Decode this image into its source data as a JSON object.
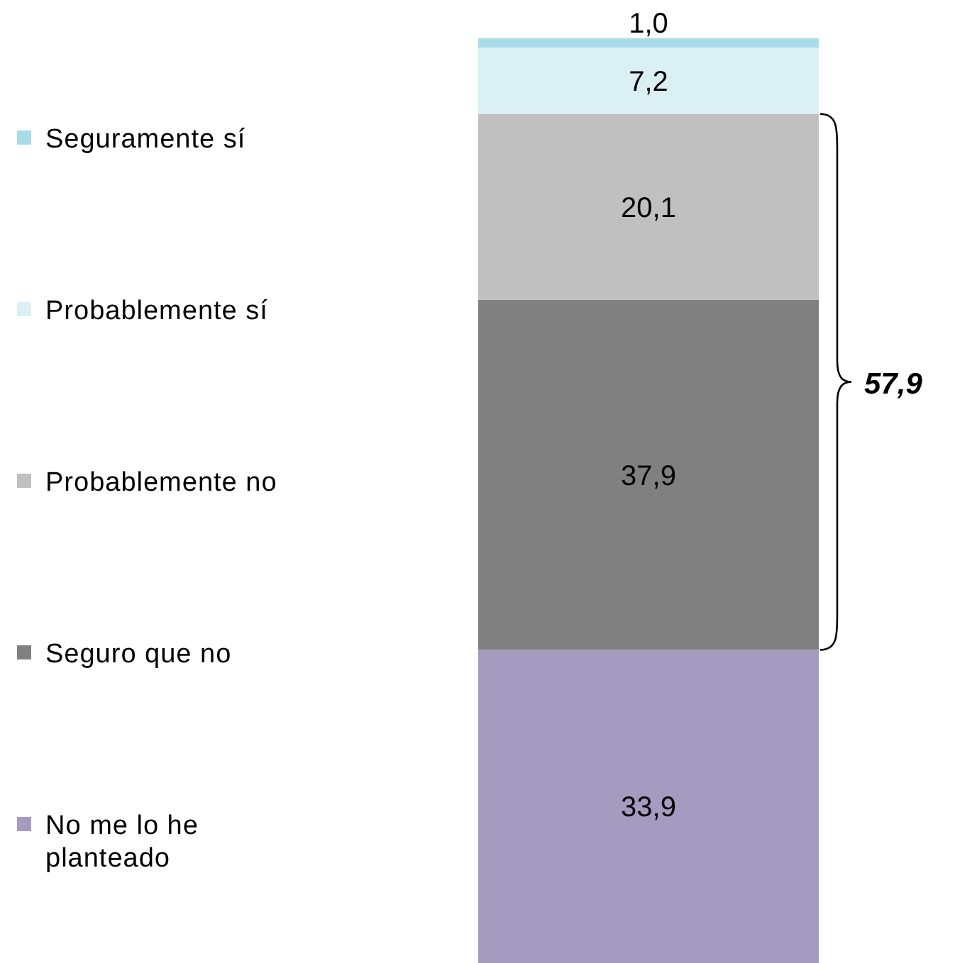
{
  "chart_data": {
    "type": "bar",
    "stacked": true,
    "categories": [
      null
    ],
    "legend": "left",
    "annotations": [
      "57,9"
    ],
    "series": [
      {
        "name": "No me lo he planteado",
        "color": "#a59bc0",
        "values": [
          33.9
        ],
        "value_labels": [
          "33,9"
        ]
      },
      {
        "name": "Seguro que no",
        "color": "#808080",
        "values": [
          37.9
        ],
        "value_labels": [
          "37,9"
        ]
      },
      {
        "name": "Probablemente no",
        "color": "#c0c0c0",
        "values": [
          20.1
        ],
        "value_labels": [
          "20,1"
        ]
      },
      {
        "name": "Probablemente sí",
        "color": "#daf0f5",
        "values": [
          7.2
        ],
        "value_labels": [
          "7,2"
        ]
      },
      {
        "name": "Seguramente sí",
        "color": "#a9dce8",
        "values": [
          1.0
        ],
        "value_labels": [
          "1,0"
        ]
      }
    ]
  }
}
